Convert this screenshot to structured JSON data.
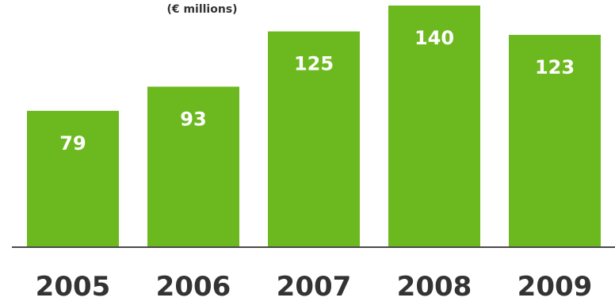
{
  "chart_data": {
    "type": "bar",
    "subtitle": "(€ millions)",
    "categories": [
      "2005",
      "2006",
      "2007",
      "2008",
      "2009"
    ],
    "values": [
      79,
      93,
      125,
      140,
      123
    ],
    "value_labels": [
      "79",
      "93",
      "125",
      "140",
      "123"
    ],
    "xlabel": "",
    "ylabel": "",
    "ylim": [
      0,
      140
    ],
    "grid": false,
    "legend": "none"
  },
  "colors": {
    "bar": "#6cb91f",
    "bar_value_text": "#ffffff",
    "axis_line": "#4a4a4a",
    "text": "#333333",
    "background": "#ffffff"
  }
}
